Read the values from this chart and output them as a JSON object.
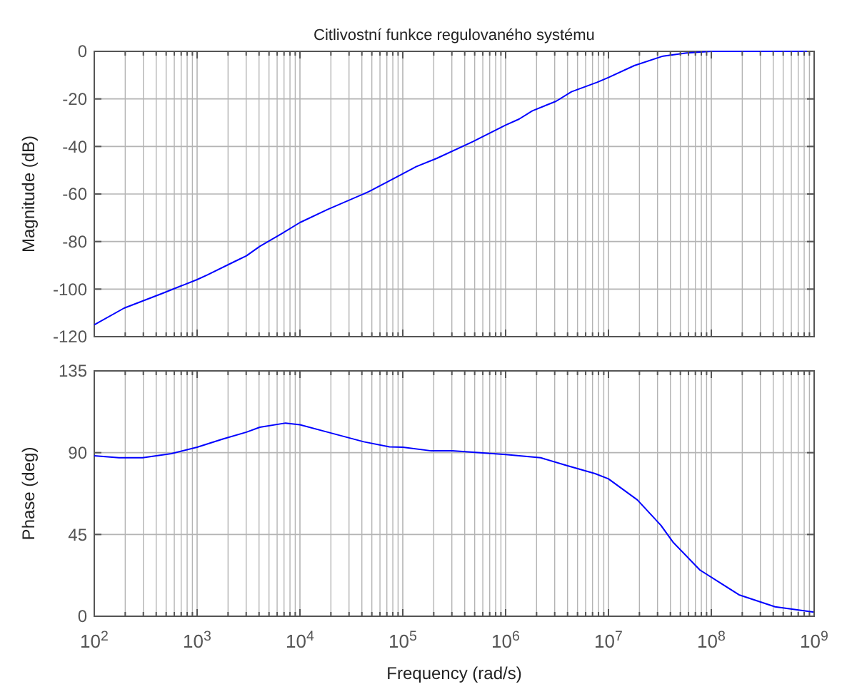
{
  "chart_data": [
    {
      "type": "line",
      "title": "Citlivostní funkce regulovaného systému",
      "ylabel": "Magnitude (dB)",
      "log": "x",
      "grid": true,
      "tick_labels": "y",
      "xlim": [
        100,
        1000000000.0
      ],
      "xticks": [
        {
          "value": 100,
          "label": null
        },
        {
          "value": 1000,
          "label": null
        },
        {
          "value": 10000,
          "label": null
        },
        {
          "value": 100000,
          "label": null
        },
        {
          "value": 1000000,
          "label": null
        },
        {
          "value": 10000000,
          "label": null
        },
        {
          "value": 100000000,
          "label": null
        },
        {
          "value": 1000000000,
          "label": null
        }
      ],
      "ylim": [
        -120,
        0
      ],
      "yticks": [
        -120,
        -100,
        -80,
        -60,
        -40,
        -20,
        0
      ],
      "series": [
        {
          "color": "#0000ff",
          "x": [
            100,
            195,
            447,
            1000,
            1260,
            2290,
            3020,
            4070,
            6460,
            10000,
            18600,
            46800,
            100000,
            135000,
            214000,
            479000,
            1000000,
            1350000,
            1820000,
            3090000,
            4370000,
            7760000,
            10000000,
            17800000,
            33900000,
            57500000,
            100000000,
            1000000000
          ],
          "values": [
            -115,
            -108,
            -102,
            -96,
            -94,
            -88.5,
            -86,
            -82,
            -77,
            -72,
            -66.5,
            -59,
            -51.5,
            -48.5,
            -45,
            -38,
            -31,
            -28.5,
            -25,
            -21,
            -17,
            -13,
            -11,
            -6,
            -2,
            -0.7,
            0,
            0
          ]
        }
      ]
    },
    {
      "type": "line",
      "xlabel": "Frequency  (rad/s)",
      "ylabel": "Phase (deg)",
      "log": "x",
      "grid": true,
      "xlim": [
        100,
        1000000000.0
      ],
      "xticks": [
        {
          "value": 100,
          "label": "10$^{2}$"
        },
        {
          "value": 1000,
          "label": "10$^{3}$"
        },
        {
          "value": 10000,
          "label": "10$^{4}$"
        },
        {
          "value": 100000,
          "label": "10$^{5}$"
        },
        {
          "value": 1000000,
          "label": "10$^{6}$"
        },
        {
          "value": 10000000,
          "label": "10$^{7}$"
        },
        {
          "value": 100000000,
          "label": "10$^{8}$"
        },
        {
          "value": 1000000000,
          "label": "10$^{9}$"
        }
      ],
      "ylim": [
        0,
        135
      ],
      "yticks": [
        0,
        45,
        90,
        135
      ],
      "series": [
        {
          "color": "#0000ff",
          "x": [
            100,
            174,
            295,
            562,
            1000,
            1780,
            3020,
            4070,
            7240,
            10000,
            18600,
            41700,
            74100,
            100000,
            190000,
            302000,
            1000000,
            2190000,
            3890000,
            7410000,
            10000000,
            19100000,
            32400000,
            42700000,
            77600000,
            186000000,
            417000000,
            1000000000
          ],
          "values": [
            88.3,
            87.2,
            87.2,
            89.5,
            93,
            97.5,
            101.3,
            104,
            106.3,
            105.4,
            101.3,
            96,
            93.2,
            93,
            91,
            91,
            89,
            87.2,
            83,
            78.5,
            75.6,
            64,
            50,
            40.6,
            25.4,
            11.8,
            5.2,
            2.3
          ]
        }
      ]
    }
  ]
}
